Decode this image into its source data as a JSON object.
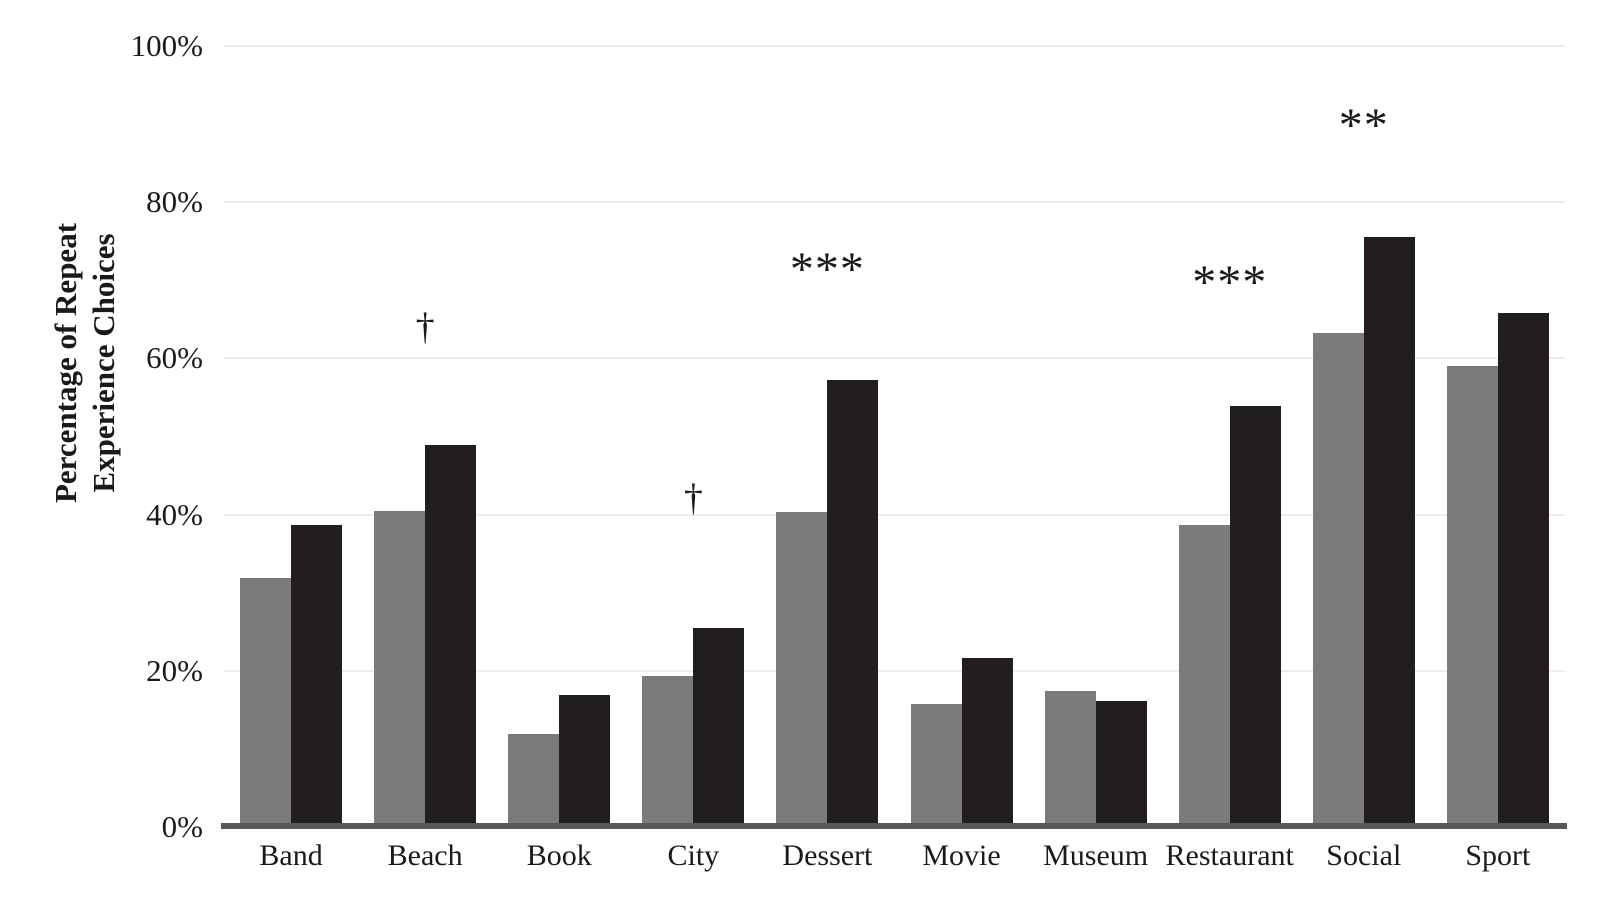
{
  "colors": {
    "series_gray": "#7b7b7e",
    "series_black": "#221e20",
    "axis_line": "#58585a",
    "gridline": "#ececec",
    "text": "#1a1a1a",
    "background": "#ffffff"
  },
  "chart_data": {
    "type": "bar",
    "title": "",
    "ylabel": "Percentage of Repeat Experience Choices",
    "ylabel_lines": [
      "Percentage of Repeat",
      "Experience Choices"
    ],
    "xlabel": "",
    "grid": true,
    "legend_position": "none",
    "ylim": [
      0,
      100
    ],
    "yticks": [
      {
        "label": "0%",
        "value": 0
      },
      {
        "label": "20%",
        "value": 20
      },
      {
        "label": "40%",
        "value": 40
      },
      {
        "label": "60%",
        "value": 60
      },
      {
        "label": "80%",
        "value": 80
      },
      {
        "label": "100%",
        "value": 100
      }
    ],
    "categories": [
      "Band",
      "Beach",
      "Book",
      "City",
      "Dessert",
      "Movie",
      "Museum",
      "Restaurant",
      "Social",
      "Sport"
    ],
    "series": [
      {
        "name": "gray",
        "color": "#7b7b7e",
        "values": [
          31.9,
          40.5,
          11.9,
          19.3,
          40.3,
          15.8,
          17.4,
          38.7,
          63.3,
          59.0
        ]
      },
      {
        "name": "black",
        "color": "#221e20",
        "values": [
          38.7,
          48.9,
          16.9,
          25.5,
          57.2,
          21.6,
          16.1,
          53.9,
          75.5,
          65.8
        ]
      }
    ],
    "annotations": [
      {
        "category": "Beach",
        "text": "†",
        "y_pct": 64.3
      },
      {
        "category": "City",
        "text": "†",
        "y_pct": 42.4
      },
      {
        "category": "Dessert",
        "text": "***",
        "y_pct": 72.5
      },
      {
        "category": "Restaurant",
        "text": "***",
        "y_pct": 70.8
      },
      {
        "category": "Social",
        "text": "**",
        "y_pct": 90.9
      }
    ]
  }
}
